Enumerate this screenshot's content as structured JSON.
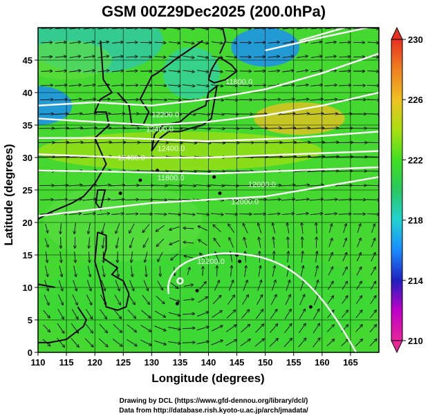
{
  "title": "GSM 00Z29Dec2025 (200.0hPa)",
  "xlabel": "Longitude (degrees)",
  "ylabel": "Latitude  (degrees)",
  "x_ticks": [
    "110",
    "115",
    "120",
    "125",
    "130",
    "135",
    "140",
    "145",
    "150",
    "155",
    "160",
    "165"
  ],
  "y_ticks": [
    "0",
    "5",
    "10",
    "15",
    "20",
    "25",
    "30",
    "35",
    "40",
    "45"
  ],
  "colorbar_ticks": [
    "230",
    "226",
    "222",
    "218",
    "214",
    "210"
  ],
  "contour_labels": [
    "11800.0",
    "12200.0",
    "12400.0",
    "12400.0",
    "11800.0",
    "12000.0",
    "12000.0",
    "12200.0",
    "12400.0"
  ],
  "credits": {
    "line1": "Drawing by DCL (https://www.gfd-dennou.org/library/dcl/)",
    "line2": "Data from http://database.rish.kyoto-u.ac.jp/arch/jmadata/"
  },
  "colors": {
    "colorbar": [
      "#e8259a",
      "#c000c8",
      "#2020c0",
      "#1a8cff",
      "#20d2d2",
      "#28c860",
      "#40e020",
      "#a8e010",
      "#f0c020",
      "#f08020",
      "#e83020"
    ],
    "contour": "#ffffff",
    "vector": "#000000",
    "coast": "#000000"
  },
  "chart_data": {
    "type": "heatmap",
    "variable": "temperature (K) with wind vectors and geopotential height contours",
    "xlim": [
      110,
      170
    ],
    "ylim": [
      0,
      50
    ],
    "color_range": [
      210,
      230
    ],
    "colorbar_tick_values": [
      230,
      226,
      222,
      218,
      214,
      210
    ],
    "contour_levels": [
      11800.0,
      12000.0,
      12200.0,
      12400.0
    ]
  }
}
